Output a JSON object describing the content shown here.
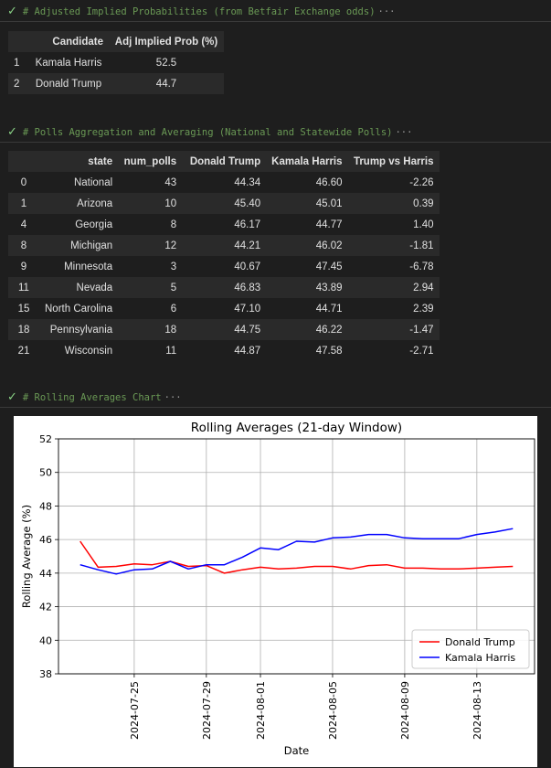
{
  "cells": [
    {
      "comment": "# Adjusted Implied Probabilities (from Betfair Exchange odds)",
      "more": "···"
    },
    {
      "comment": "# Polls Aggregation and Averaging (National and Statewide Polls)",
      "more": "···"
    },
    {
      "comment": "# Rolling Averages Chart",
      "more": "···"
    }
  ],
  "probabilities_table": {
    "headers": [
      "",
      "Candidate",
      "Adj Implied Prob (%)"
    ],
    "rows": [
      {
        "index": "1",
        "candidate": "Kamala Harris",
        "prob": "52.5"
      },
      {
        "index": "2",
        "candidate": "Donald Trump",
        "prob": "44.7"
      }
    ]
  },
  "polls_table": {
    "headers": [
      "",
      "state",
      "num_polls",
      "Donald Trump",
      "Kamala Harris",
      "Trump vs Harris"
    ],
    "rows": [
      [
        "0",
        "National",
        "43",
        "44.34",
        "46.60",
        "-2.26"
      ],
      [
        "1",
        "Arizona",
        "10",
        "45.40",
        "45.01",
        "0.39"
      ],
      [
        "4",
        "Georgia",
        "8",
        "46.17",
        "44.77",
        "1.40"
      ],
      [
        "8",
        "Michigan",
        "12",
        "44.21",
        "46.02",
        "-1.81"
      ],
      [
        "9",
        "Minnesota",
        "3",
        "40.67",
        "47.45",
        "-6.78"
      ],
      [
        "11",
        "Nevada",
        "5",
        "46.83",
        "43.89",
        "2.94"
      ],
      [
        "15",
        "North Carolina",
        "6",
        "47.10",
        "44.71",
        "2.39"
      ],
      [
        "18",
        "Pennsylvania",
        "18",
        "44.75",
        "46.22",
        "-1.47"
      ],
      [
        "21",
        "Wisconsin",
        "11",
        "44.87",
        "47.58",
        "-2.71"
      ]
    ]
  },
  "chart_data": {
    "type": "line",
    "title": "Rolling Averages (21-day Window)",
    "xlabel": "Date",
    "ylabel": "Rolling Average (%)",
    "ylim": [
      38,
      52
    ],
    "yticks": [
      38,
      40,
      42,
      44,
      46,
      48,
      50,
      52
    ],
    "xtick_labels": [
      "2024-07-25",
      "2024-07-29",
      "2024-08-01",
      "2024-08-05",
      "2024-08-09",
      "2024-08-13"
    ],
    "grid": true,
    "legend": "lower-right",
    "x": [
      "2024-07-22",
      "2024-07-23",
      "2024-07-24",
      "2024-07-25",
      "2024-07-26",
      "2024-07-27",
      "2024-07-28",
      "2024-07-29",
      "2024-07-30",
      "2024-07-31",
      "2024-08-01",
      "2024-08-02",
      "2024-08-03",
      "2024-08-04",
      "2024-08-05",
      "2024-08-06",
      "2024-08-07",
      "2024-08-08",
      "2024-08-09",
      "2024-08-10",
      "2024-08-11",
      "2024-08-12",
      "2024-08-13",
      "2024-08-14",
      "2024-08-15"
    ],
    "series": [
      {
        "name": "Donald Trump",
        "color": "#ff0000",
        "values": [
          45.9,
          44.35,
          44.4,
          44.55,
          44.5,
          44.7,
          44.4,
          44.45,
          44.0,
          44.2,
          44.35,
          44.25,
          44.3,
          44.4,
          44.4,
          44.25,
          44.45,
          44.5,
          44.3,
          44.3,
          44.25,
          44.25,
          44.3,
          44.35,
          44.4
        ]
      },
      {
        "name": "Kamala Harris",
        "color": "#0000ff",
        "values": [
          44.5,
          44.2,
          43.95,
          44.2,
          44.25,
          44.7,
          44.25,
          44.5,
          44.5,
          44.95,
          45.5,
          45.4,
          45.9,
          45.85,
          46.1,
          46.15,
          46.3,
          46.3,
          46.1,
          46.05,
          46.05,
          46.05,
          46.3,
          46.45,
          46.65
        ]
      }
    ]
  }
}
